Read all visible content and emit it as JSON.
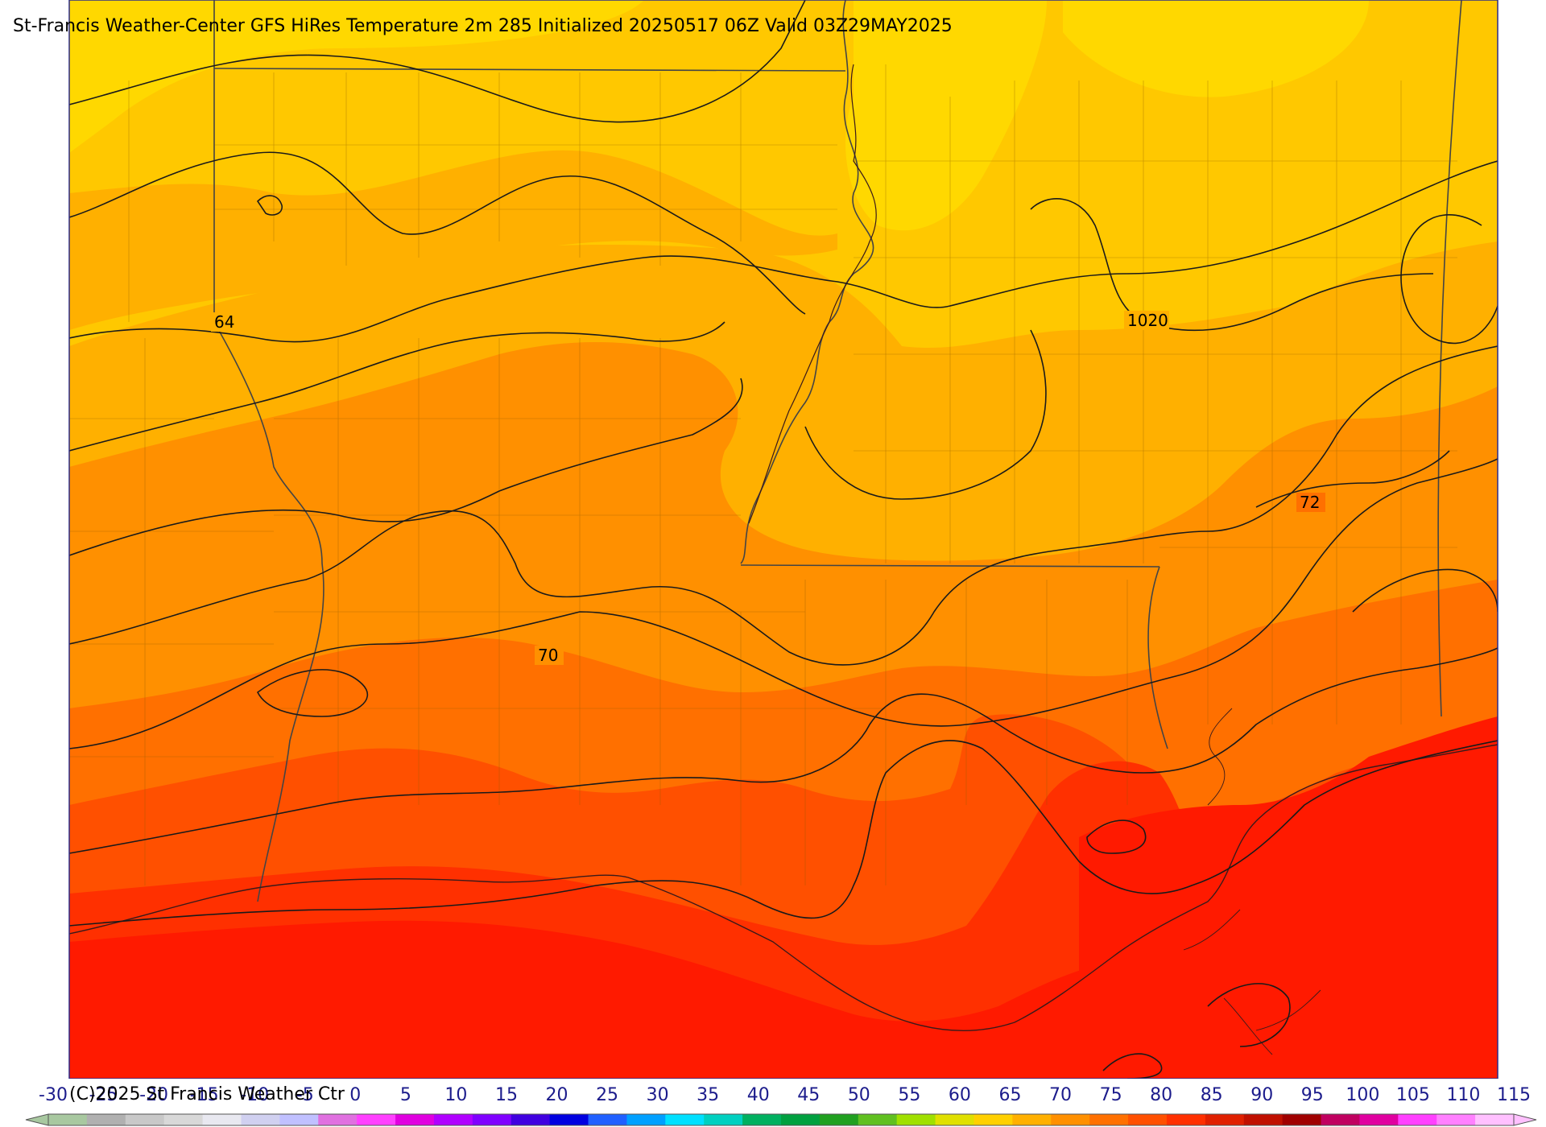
{
  "title": "St-Francis Weather-Center GFS HiRes Temperature 2m  285 Initialized 20250517 06Z Valid 03Z29MAY2025",
  "copyright": "(C)2025 St Francis Weather Ctr",
  "map": {
    "contour_labels": [
      "64",
      "70",
      "72",
      "1020"
    ]
  },
  "colorbar": {
    "min": -30,
    "max": 115,
    "tick_labels": [
      "-30",
      "-25",
      "-20",
      "-15",
      "-10",
      "-5",
      "0",
      "5",
      "10",
      "15",
      "20",
      "25",
      "30",
      "35",
      "40",
      "45",
      "50",
      "55",
      "60",
      "65",
      "70",
      "75",
      "80",
      "85",
      "90",
      "95",
      "100",
      "105",
      "110",
      "115"
    ],
    "colors": [
      "#a8c8a0",
      "#b0b0b0",
      "#c8c8c8",
      "#d8d8d8",
      "#e8e8f0",
      "#d0d0f0",
      "#c0c0ff",
      "#e070e0",
      "#ff40ff",
      "#e000e0",
      "#b000ff",
      "#8000ff",
      "#4000e0",
      "#0000e0",
      "#2060ff",
      "#00a0ff",
      "#00e0ff",
      "#00d0c0",
      "#00b060",
      "#00a040",
      "#20a020",
      "#60c020",
      "#a0e000",
      "#e0e000",
      "#ffd000",
      "#ffb000",
      "#ff9000",
      "#ff7000",
      "#ff5000",
      "#ff3000",
      "#e02000",
      "#c01000",
      "#a00000",
      "#c00060",
      "#e000a0",
      "#ff40ff",
      "#ff80ff",
      "#ffc0ff"
    ]
  }
}
